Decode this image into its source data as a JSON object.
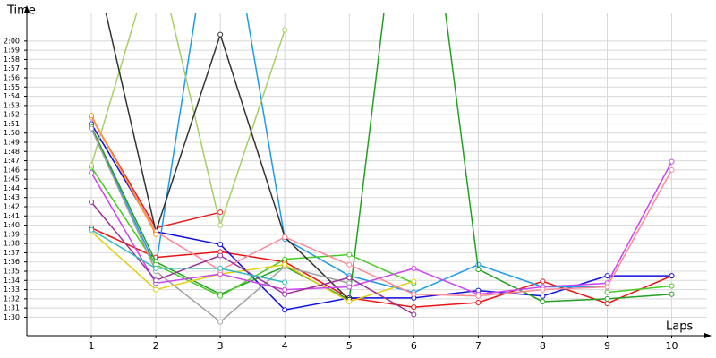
{
  "chart_data": {
    "type": "line",
    "x_label": "Laps",
    "y_label": "Time",
    "x": [
      1,
      2,
      3,
      4,
      5,
      6,
      7,
      8,
      9,
      10
    ],
    "xlim": [
      0,
      10.27
    ],
    "xticks": [
      1,
      2,
      3,
      4,
      5,
      6,
      7,
      8,
      9,
      10
    ],
    "ylim": [
      88,
      123
    ],
    "yticks": [
      {
        "value": 90,
        "label": "1:30"
      },
      {
        "value": 91,
        "label": "1:31"
      },
      {
        "value": 92,
        "label": "1:32"
      },
      {
        "value": 93,
        "label": "1:33"
      },
      {
        "value": 94,
        "label": "1:34"
      },
      {
        "value": 95,
        "label": "1:35"
      },
      {
        "value": 96,
        "label": "1:36"
      },
      {
        "value": 97,
        "label": "1:37"
      },
      {
        "value": 98,
        "label": "1:38"
      },
      {
        "value": 99,
        "label": "1:39"
      },
      {
        "value": 100,
        "label": "1:40"
      },
      {
        "value": 101,
        "label": "1:41"
      },
      {
        "value": 102,
        "label": "1:42"
      },
      {
        "value": 103,
        "label": "1:43"
      },
      {
        "value": 104,
        "label": "1:44"
      },
      {
        "value": 105,
        "label": "1:45"
      },
      {
        "value": 106,
        "label": "1:46"
      },
      {
        "value": 107,
        "label": "1:47"
      },
      {
        "value": 108,
        "label": "1:48"
      },
      {
        "value": 109,
        "label": "1:49"
      },
      {
        "value": 110,
        "label": "1:50"
      },
      {
        "value": 111,
        "label": "1:51"
      },
      {
        "value": 112,
        "label": "1:52"
      },
      {
        "value": 113,
        "label": "1:53"
      },
      {
        "value": 114,
        "label": "1:54"
      },
      {
        "value": 115,
        "label": "1:55"
      },
      {
        "value": 116,
        "label": "1:56"
      },
      {
        "value": 117,
        "label": "1:57"
      },
      {
        "value": 118,
        "label": "1:58"
      },
      {
        "value": 119,
        "label": "1:59"
      },
      {
        "value": 120,
        "label": "2:00"
      }
    ],
    "grid": true,
    "series": [
      {
        "color": "#ee1111",
        "values": [
          99.7,
          96.5,
          97.1,
          96,
          92.1,
          91.1,
          91.6,
          93.9,
          91.5,
          94.5
        ]
      },
      {
        "color": "#e62020",
        "values": [
          111.7,
          99.7,
          101.4,
          null,
          null,
          null,
          null,
          null,
          null,
          null
        ]
      },
      {
        "color": "#1010dd",
        "values": [
          111,
          99.3,
          97.9,
          90.8,
          92.1,
          92.1,
          92.9,
          92.3,
          94.5,
          94.5
        ]
      },
      {
        "color": "#1e9be8",
        "values": [
          110.5,
          95.5,
          140,
          98.5,
          94.5,
          92.7,
          95.7,
          93.3,
          93.3,
          null
        ]
      },
      {
        "color": "#22a022",
        "values": [
          110.7,
          96,
          92.5,
          95.5,
          91.9,
          150,
          95.2,
          91.7,
          92,
          92.5
        ]
      },
      {
        "color": "#44cc22",
        "values": [
          106.3,
          95.7,
          92.3,
          96.3,
          96.8,
          93.7,
          null,
          null,
          92.7,
          93.4
        ]
      },
      {
        "color": "#a8cf66",
        "values": [
          106.5,
          130,
          100,
          121.2,
          null,
          null,
          null,
          null,
          null,
          null
        ]
      },
      {
        "color": "#333333",
        "values": [
          130,
          99.3,
          120.7,
          98.7,
          91.9,
          null,
          null,
          null,
          null,
          null
        ]
      },
      {
        "color": "#a0a0a0",
        "values": [
          110.5,
          95,
          89.5,
          95.5,
          93.7,
          null,
          null,
          null,
          null,
          null
        ]
      },
      {
        "color": "#e0d010",
        "values": [
          99.3,
          93,
          94.7,
          95.7,
          91.7,
          93.9,
          null,
          null,
          null,
          null
        ]
      },
      {
        "color": "#cc44ee",
        "values": [
          105.7,
          93.7,
          94.7,
          93,
          93.3,
          95.3,
          92.5,
          93.3,
          93.7,
          106.9
        ]
      },
      {
        "color": "#ff8899",
        "values": [
          111.7,
          99.3,
          95.1,
          98.7,
          95.7,
          92.5,
          92.3,
          93,
          93.3,
          106
        ]
      },
      {
        "color": "#993399",
        "values": [
          102.5,
          94,
          96.7,
          92.5,
          94.3,
          90.3,
          null,
          null,
          null,
          null
        ]
      },
      {
        "color": "#33bbbb",
        "values": [
          99.5,
          95.3,
          95.3,
          93.8,
          null,
          null,
          null,
          null,
          null,
          null
        ]
      },
      {
        "color": "#ff9922",
        "values": [
          111.9,
          99,
          null,
          null,
          null,
          null,
          null,
          null,
          null,
          null
        ]
      }
    ]
  }
}
